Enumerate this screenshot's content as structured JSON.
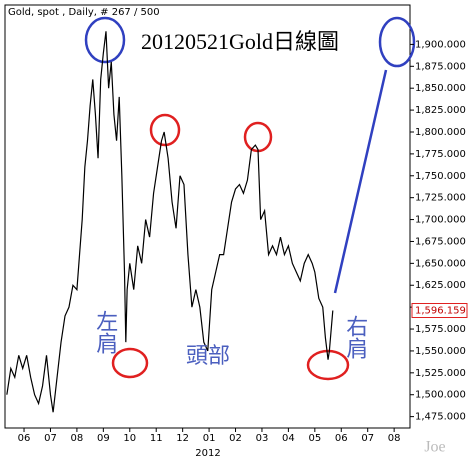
{
  "chart_data": {
    "type": "line",
    "header": "Gold, spot , Daily, # 267 / 500",
    "title": "20120521Gold日線圖",
    "x_year_label": "2012",
    "watermark": "Joe",
    "annotations": {
      "left_shoulder": "左肩",
      "head": "頭部",
      "right_shoulder": "右肩"
    },
    "last_price": {
      "value": 1596.159,
      "label": "1,596.159"
    },
    "color": "#000000",
    "x": [
      5.35,
      5.5,
      5.65,
      5.8,
      5.95,
      6.1,
      6.25,
      6.4,
      6.55,
      6.7,
      6.85,
      7.0,
      7.1,
      7.25,
      7.4,
      7.55,
      7.7,
      7.85,
      8.0,
      8.1,
      8.2,
      8.3,
      8.4,
      8.5,
      8.6,
      8.7,
      8.8,
      8.9,
      9.0,
      9.1,
      9.2,
      9.3,
      9.4,
      9.5,
      9.6,
      9.7,
      9.8,
      9.85,
      9.9,
      10.0,
      10.15,
      10.3,
      10.45,
      10.6,
      10.75,
      10.9,
      11.05,
      11.2,
      11.3,
      11.45,
      11.6,
      11.75,
      11.9,
      12.05,
      12.2,
      12.35,
      12.5,
      12.65,
      12.8,
      12.95,
      13.1,
      13.25,
      13.4,
      13.55,
      13.7,
      13.85,
      14.0,
      14.15,
      14.3,
      14.45,
      14.6,
      14.75,
      14.85,
      14.95,
      15.1,
      15.25,
      15.4,
      15.55,
      15.7,
      15.85,
      16.0,
      16.15,
      16.3,
      16.45,
      16.6,
      16.75,
      16.9,
      17.0,
      17.15,
      17.3,
      17.4,
      17.5,
      17.55,
      17.68
    ],
    "values": [
      1500,
      1530,
      1520,
      1545,
      1530,
      1545,
      1520,
      1500,
      1490,
      1510,
      1545,
      1500,
      1480,
      1520,
      1560,
      1590,
      1600,
      1625,
      1620,
      1660,
      1700,
      1760,
      1790,
      1830,
      1860,
      1820,
      1770,
      1860,
      1890,
      1915,
      1850,
      1880,
      1820,
      1790,
      1840,
      1750,
      1640,
      1560,
      1620,
      1650,
      1620,
      1670,
      1650,
      1700,
      1680,
      1730,
      1760,
      1790,
      1800,
      1770,
      1720,
      1690,
      1750,
      1740,
      1660,
      1600,
      1620,
      1600,
      1560,
      1550,
      1620,
      1640,
      1660,
      1660,
      1690,
      1720,
      1735,
      1740,
      1730,
      1745,
      1780,
      1785,
      1780,
      1700,
      1710,
      1660,
      1670,
      1660,
      1680,
      1660,
      1670,
      1650,
      1640,
      1630,
      1650,
      1660,
      1650,
      1640,
      1610,
      1600,
      1565,
      1540,
      1550,
      1596.159
    ],
    "xlim": [
      5.28,
      20.6
    ],
    "xticks": [
      {
        "value": 6,
        "label": "06"
      },
      {
        "value": 7,
        "label": "07"
      },
      {
        "value": 8,
        "label": "08"
      },
      {
        "value": 9,
        "label": "09"
      },
      {
        "value": 10,
        "label": "10"
      },
      {
        "value": 11,
        "label": "11"
      },
      {
        "value": 12,
        "label": "12"
      },
      {
        "value": 13,
        "label": "01"
      },
      {
        "value": 14,
        "label": "02"
      },
      {
        "value": 15,
        "label": "03"
      },
      {
        "value": 16,
        "label": "04"
      },
      {
        "value": 17,
        "label": "05"
      },
      {
        "value": 18,
        "label": "06"
      },
      {
        "value": 19,
        "label": "07"
      },
      {
        "value": 20,
        "label": "08"
      }
    ],
    "ylim": [
      1462,
      1945
    ],
    "yticks": [
      {
        "value": 1475,
        "label": "1,475.000"
      },
      {
        "value": 1500,
        "label": "1,500.000"
      },
      {
        "value": 1525,
        "label": "1,525.000"
      },
      {
        "value": 1550,
        "label": "1,550.000"
      },
      {
        "value": 1575,
        "label": "1,575.000"
      },
      {
        "value": 1600,
        "label": "1,600.000"
      },
      {
        "value": 1625,
        "label": "1,625.000"
      },
      {
        "value": 1650,
        "label": "1,650.000"
      },
      {
        "value": 1675,
        "label": "1,675.000"
      },
      {
        "value": 1700,
        "label": "1,700.000"
      },
      {
        "value": 1725,
        "label": "1,725.000"
      },
      {
        "value": 1750,
        "label": "1,750.000"
      },
      {
        "value": 1775,
        "label": "1,775.000"
      },
      {
        "value": 1800,
        "label": "1,800.000"
      },
      {
        "value": 1825,
        "label": "1,825.000"
      },
      {
        "value": 1850,
        "label": "1,850.000"
      },
      {
        "value": 1875,
        "label": "1,875.000"
      },
      {
        "value": 1900,
        "label": "1,900.000"
      }
    ]
  }
}
